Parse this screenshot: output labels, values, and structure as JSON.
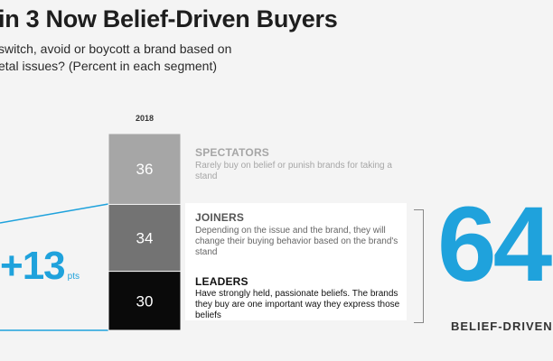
{
  "header": {
    "title": "in 3 Now Belief-Driven Buyers",
    "subtitle_line1": "switch, avoid or boycott a brand based on",
    "subtitle_line2": "etal issues? (Percent in each segment)"
  },
  "chart_data": {
    "type": "bar",
    "title": "in 3 Now Belief-Driven Buyers",
    "categories": [
      "2018"
    ],
    "series": [
      {
        "name": "SPECTATORS",
        "values": [
          36
        ],
        "color": "#a6a6a6"
      },
      {
        "name": "JOINERS",
        "values": [
          34
        ],
        "color": "#737373"
      },
      {
        "name": "LEADERS",
        "values": [
          30
        ],
        "color": "#0a0a0a"
      }
    ],
    "stacked": true,
    "ylim": [
      0,
      100
    ]
  },
  "segments": {
    "spectators": {
      "label": "SPECTATORS",
      "description": "Rarely buy on belief or punish brands for taking a stand"
    },
    "joiners": {
      "label": "JOINERS",
      "description": "Depending on the issue and the brand, they will change their buying behavior based on the brand's stand"
    },
    "leaders": {
      "label": "LEADERS",
      "description": "Have strongly held, passionate beliefs. The brands they buy are one important way they express those beliefs"
    }
  },
  "change": {
    "value": "+13",
    "unit": "pts"
  },
  "total": {
    "value": "64",
    "caption": "BELIEF-DRIVEN"
  },
  "colors": {
    "accent": "#1fa2dc"
  }
}
